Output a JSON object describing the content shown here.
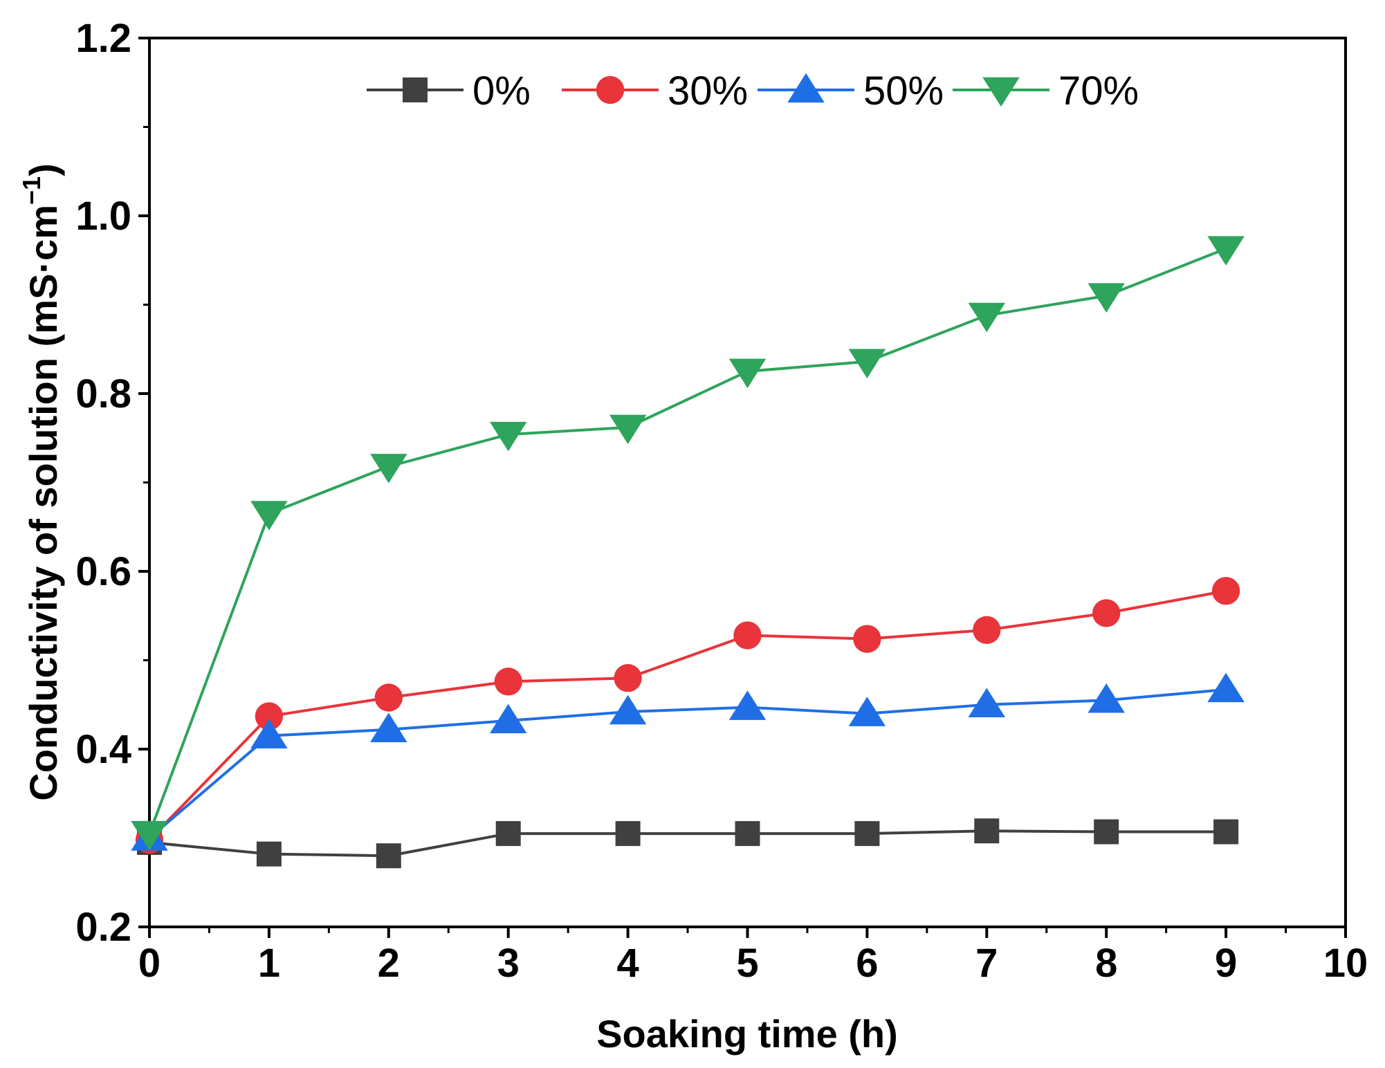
{
  "chart_data": {
    "type": "line",
    "title": "",
    "xlabel": "Soaking time (h)",
    "ylabel": "Conductivity of solution (mS·cm",
    "ylabel_sup": "−1",
    "ylabel_close": ")",
    "xlim": [
      0,
      10
    ],
    "ylim": [
      0.2,
      1.2
    ],
    "xticks": [
      0,
      1,
      2,
      3,
      4,
      5,
      6,
      7,
      8,
      9,
      10
    ],
    "xtick_labels": [
      "0",
      "1",
      "2",
      "3",
      "4",
      "5",
      "6",
      "7",
      "8",
      "9",
      "10"
    ],
    "yticks": [
      0.2,
      0.4,
      0.6,
      0.8,
      1.0,
      1.2
    ],
    "ytick_labels": [
      "0.2",
      "0.4",
      "0.6",
      "0.8",
      "1.0",
      "1.2"
    ],
    "grid": false,
    "legend_position": "top",
    "x": [
      0,
      1,
      2,
      3,
      4,
      5,
      6,
      7,
      8,
      9
    ],
    "series": [
      {
        "name": "0%",
        "color": "#404040",
        "marker": "square",
        "values": [
          0.295,
          0.282,
          0.28,
          0.305,
          0.305,
          0.305,
          0.305,
          0.308,
          0.307,
          0.307
        ]
      },
      {
        "name": "30%",
        "color": "#e8343a",
        "marker": "circle",
        "values": [
          0.298,
          0.437,
          0.458,
          0.476,
          0.48,
          0.528,
          0.524,
          0.534,
          0.553,
          0.578
        ]
      },
      {
        "name": "50%",
        "color": "#1f6ee6",
        "marker": "triangle-up",
        "values": [
          0.3,
          0.415,
          0.422,
          0.432,
          0.442,
          0.447,
          0.44,
          0.45,
          0.455,
          0.467
        ]
      },
      {
        "name": "70%",
        "color": "#2ea45c",
        "marker": "triangle-down",
        "values": [
          0.305,
          0.665,
          0.718,
          0.754,
          0.762,
          0.825,
          0.836,
          0.888,
          0.91,
          0.963
        ]
      }
    ]
  }
}
